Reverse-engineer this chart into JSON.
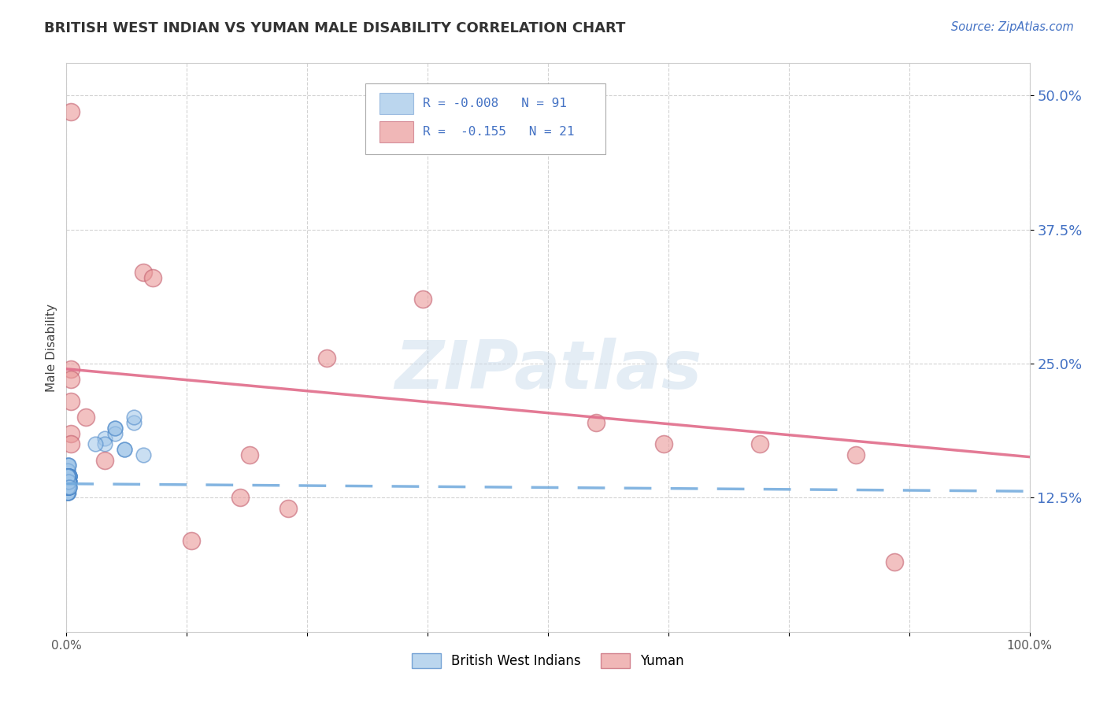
{
  "title": "BRITISH WEST INDIAN VS YUMAN MALE DISABILITY CORRELATION CHART",
  "source": "Source: ZipAtlas.com",
  "ylabel": "Male Disability",
  "xlim": [
    0,
    1.0
  ],
  "ylim": [
    0.0,
    0.53
  ],
  "yticks": [
    0.125,
    0.25,
    0.375,
    0.5
  ],
  "ytick_labels": [
    "12.5%",
    "25.0%",
    "37.5%",
    "50.0%"
  ],
  "xticks": [
    0.0,
    0.125,
    0.25,
    0.375,
    0.5,
    0.625,
    0.75,
    0.875,
    1.0
  ],
  "xtick_labels": [
    "0.0%",
    "",
    "",
    "",
    "",
    "",
    "",
    "",
    "100.0%"
  ],
  "background_color": "#ffffff",
  "grid_color": "#c8c8c8",
  "title_color": "#333333",
  "source_color": "#4472c4",
  "legend_r1": "R = -0.008   N = 91",
  "legend_r2": "R =  -0.155   N = 21",
  "blue_color": "#9fc5e8",
  "pink_color": "#ea9999",
  "blue_line_color": "#6fa8dc",
  "pink_line_color": "#e06c8a",
  "watermark": "ZIPatlas",
  "bwi_x": [
    0.001,
    0.002,
    0.001,
    0.003,
    0.001,
    0.002,
    0.001,
    0.002,
    0.003,
    0.001,
    0.002,
    0.001,
    0.002,
    0.001,
    0.003,
    0.001,
    0.002,
    0.001,
    0.002,
    0.001,
    0.001,
    0.002,
    0.003,
    0.001,
    0.002,
    0.001,
    0.003,
    0.002,
    0.001,
    0.002,
    0.001,
    0.002,
    0.001,
    0.003,
    0.002,
    0.001,
    0.002,
    0.001,
    0.002,
    0.003,
    0.001,
    0.002,
    0.001,
    0.002,
    0.001,
    0.003,
    0.002,
    0.001,
    0.002,
    0.001,
    0.001,
    0.002,
    0.001,
    0.003,
    0.002,
    0.001,
    0.002,
    0.001,
    0.002,
    0.001,
    0.003,
    0.002,
    0.001,
    0.002,
    0.001,
    0.002,
    0.003,
    0.001,
    0.002,
    0.001,
    0.002,
    0.001,
    0.002,
    0.003,
    0.001,
    0.002,
    0.001,
    0.002,
    0.001,
    0.003,
    0.04,
    0.05,
    0.06,
    0.07,
    0.08,
    0.05,
    0.06,
    0.07,
    0.04,
    0.05,
    0.03
  ],
  "bwi_y": [
    0.135,
    0.14,
    0.155,
    0.145,
    0.13,
    0.14,
    0.15,
    0.155,
    0.145,
    0.14,
    0.13,
    0.135,
    0.14,
    0.15,
    0.145,
    0.13,
    0.155,
    0.14,
    0.145,
    0.135,
    0.14,
    0.145,
    0.14,
    0.135,
    0.14,
    0.145,
    0.14,
    0.135,
    0.14,
    0.145,
    0.13,
    0.14,
    0.135,
    0.14,
    0.145,
    0.14,
    0.135,
    0.13,
    0.14,
    0.145,
    0.135,
    0.14,
    0.145,
    0.14,
    0.135,
    0.145,
    0.14,
    0.135,
    0.14,
    0.145,
    0.14,
    0.135,
    0.145,
    0.14,
    0.145,
    0.14,
    0.135,
    0.14,
    0.145,
    0.14,
    0.145,
    0.14,
    0.135,
    0.14,
    0.145,
    0.14,
    0.135,
    0.145,
    0.14,
    0.135,
    0.14,
    0.145,
    0.14,
    0.135,
    0.145,
    0.14,
    0.135,
    0.14,
    0.145,
    0.135,
    0.18,
    0.19,
    0.17,
    0.195,
    0.165,
    0.185,
    0.17,
    0.2,
    0.175,
    0.19,
    0.175
  ],
  "yuman_x": [
    0.005,
    0.08,
    0.09,
    0.37,
    0.005,
    0.005,
    0.02,
    0.04,
    0.13,
    0.19,
    0.27,
    0.55,
    0.62,
    0.72,
    0.82,
    0.005,
    0.005,
    0.005,
    0.18,
    0.23,
    0.86
  ],
  "yuman_y": [
    0.485,
    0.335,
    0.33,
    0.31,
    0.245,
    0.215,
    0.2,
    0.16,
    0.085,
    0.165,
    0.255,
    0.195,
    0.175,
    0.175,
    0.165,
    0.185,
    0.175,
    0.235,
    0.125,
    0.115,
    0.065
  ],
  "blue_trend_x": [
    0.0,
    1.0
  ],
  "blue_trend_y": [
    0.138,
    0.131
  ],
  "pink_trend_x": [
    0.0,
    1.0
  ],
  "pink_trend_y": [
    0.245,
    0.163
  ]
}
